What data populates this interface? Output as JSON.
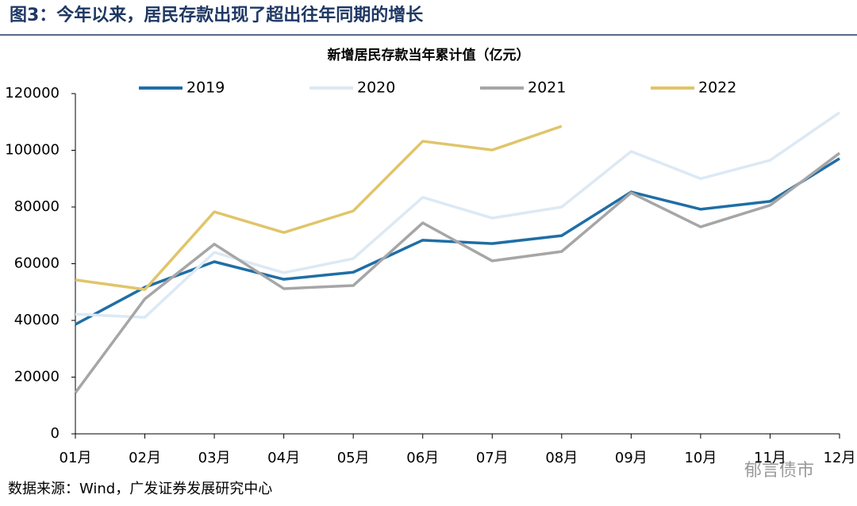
{
  "figure_title": "图3：今年以来，居民存款出现了超出往年同期的增长",
  "source": "数据来源：Wind，广发证券发展研究中心",
  "watermark": "郁言债市",
  "chart_data": {
    "type": "line",
    "title": "新增居民存款当年累计值（亿元）",
    "categories": [
      "01月",
      "02月",
      "03月",
      "04月",
      "05月",
      "06月",
      "07月",
      "08月",
      "09月",
      "10月",
      "11月",
      "12月"
    ],
    "series": [
      {
        "name": "2019",
        "color": "#1f6ea6",
        "values": [
          38600,
          51700,
          60700,
          54500,
          57000,
          68300,
          67100,
          69900,
          85300,
          79200,
          82000,
          97100
        ]
      },
      {
        "name": "2020",
        "color": "#dce9f5",
        "values": [
          42200,
          41100,
          64000,
          56800,
          61800,
          83400,
          76100,
          80000,
          99600,
          90000,
          96500,
          113300
        ]
      },
      {
        "name": "2021",
        "color": "#a6a6a6",
        "values": [
          14500,
          47600,
          66900,
          51200,
          52300,
          74400,
          61000,
          64300,
          85000,
          73000,
          80600,
          99000
        ]
      },
      {
        "name": "2022",
        "color": "#e0c56a",
        "values": [
          54300,
          50900,
          78300,
          71000,
          78600,
          103200,
          100100,
          108500,
          null,
          null,
          null,
          null
        ]
      }
    ],
    "ylim": [
      0,
      120000
    ],
    "yticks": [
      0,
      20000,
      40000,
      60000,
      80000,
      100000,
      120000
    ],
    "grid": false,
    "legend": "top"
  }
}
